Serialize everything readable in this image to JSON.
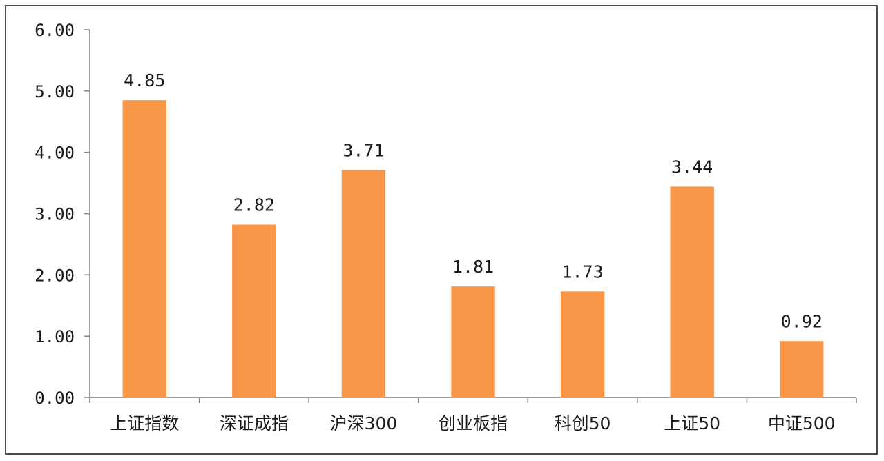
{
  "chart_data": {
    "type": "bar",
    "categories": [
      "上证指数",
      "深证成指",
      "沪深300",
      "创业板指",
      "科创50",
      "上证50",
      "中证500"
    ],
    "values": [
      4.85,
      2.82,
      3.71,
      1.81,
      1.73,
      3.44,
      0.92
    ],
    "data_labels": [
      "4.85",
      "2.82",
      "3.71",
      "1.81",
      "1.73",
      "3.44",
      "0.92"
    ],
    "y_ticks": [
      "0.00",
      "1.00",
      "2.00",
      "3.00",
      "4.00",
      "5.00",
      "6.00"
    ],
    "ylim": [
      0,
      6
    ],
    "title": "",
    "xlabel": "",
    "ylabel": "",
    "grid": false,
    "legend": "none",
    "bar_color": "#f79646"
  }
}
